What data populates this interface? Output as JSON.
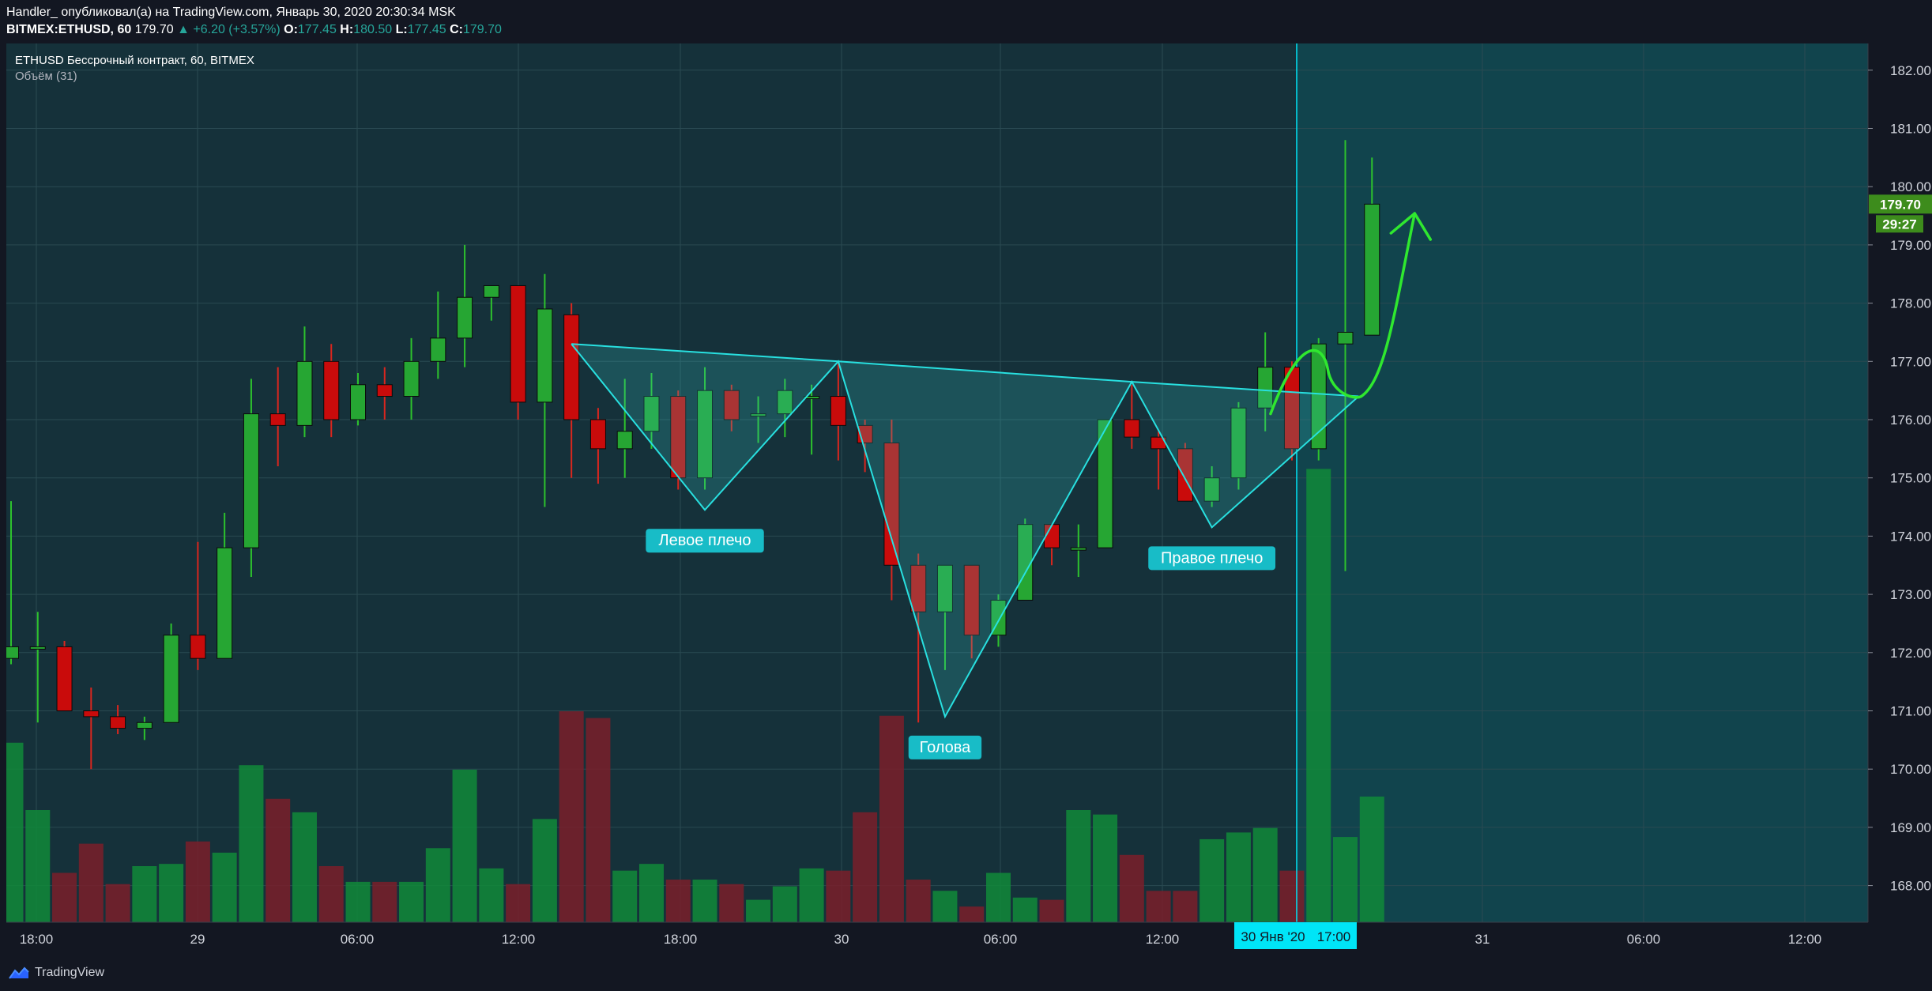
{
  "header": {
    "line1": "Handler_ опубликовал(а) на TradingView.com, Январь 30, 2020 20:30:34 MSK",
    "symbol_interval": "BITMEX:ETHUSD, 60",
    "last": "179.70",
    "change": "▲ +6.20 (+3.57%)",
    "o_label": "O:",
    "o": "177.45",
    "h_label": "H:",
    "h": "180.50",
    "l_label": "L:",
    "l": "177.45",
    "c_label": "C:",
    "c": "179.70"
  },
  "legend": {
    "title": "ETHUSD Бессрочный контракт, 60, BITMEX",
    "volume": "Объём (31)"
  },
  "footer": {
    "brand": "TradingView",
    "brand_icon": "tradingview-logo-icon"
  },
  "colors": {
    "up": "#26a633",
    "down": "#c90b0b",
    "pattern": "#28e0e0",
    "label_bg": "#18bcc7",
    "arrow": "#2fe82f",
    "price_tag": "#3d8c1c",
    "crosshair_label": "#00e5f7"
  },
  "chart_data": {
    "type": "candlestick",
    "interval_minutes": 60,
    "price_axis": {
      "ticks": [
        "168.00",
        "169.00",
        "170.00",
        "171.00",
        "172.00",
        "173.00",
        "174.00",
        "175.00",
        "176.00",
        "177.00",
        "178.00",
        "179.00",
        "180.00",
        "181.00",
        "182.00"
      ],
      "ylim": [
        167.4,
        182.4
      ],
      "last_price": "179.70",
      "countdown": "29:27"
    },
    "time_axis": {
      "ticks": [
        "18:00",
        "29",
        "06:00",
        "12:00",
        "18:00",
        "30",
        "06:00",
        "12:00",
        "31",
        "06:00",
        "12:00"
      ],
      "crosshair_date": "30 Янв '20",
      "crosshair_time": "17:00"
    },
    "candles": [
      {
        "o": 171.9,
        "h": 174.6,
        "l": 171.8,
        "c": 172.1
      },
      {
        "o": 172.1,
        "h": 172.7,
        "l": 170.8,
        "c": 172.1
      },
      {
        "o": 172.1,
        "h": 172.2,
        "l": 171.0,
        "c": 171.0
      },
      {
        "o": 171.0,
        "h": 171.4,
        "l": 170.0,
        "c": 170.9
      },
      {
        "o": 170.9,
        "h": 171.1,
        "l": 170.6,
        "c": 170.7
      },
      {
        "o": 170.7,
        "h": 170.9,
        "l": 170.5,
        "c": 170.8
      },
      {
        "o": 170.8,
        "h": 172.5,
        "l": 170.8,
        "c": 172.3
      },
      {
        "o": 172.3,
        "h": 173.9,
        "l": 171.7,
        "c": 171.9
      },
      {
        "o": 171.9,
        "h": 174.4,
        "l": 171.9,
        "c": 173.8
      },
      {
        "o": 173.8,
        "h": 176.7,
        "l": 173.3,
        "c": 176.1
      },
      {
        "o": 176.1,
        "h": 176.9,
        "l": 175.2,
        "c": 175.9
      },
      {
        "o": 175.9,
        "h": 177.6,
        "l": 175.7,
        "c": 177.0
      },
      {
        "o": 177.0,
        "h": 177.3,
        "l": 175.7,
        "c": 176.0
      },
      {
        "o": 176.0,
        "h": 176.8,
        "l": 175.9,
        "c": 176.6
      },
      {
        "o": 176.6,
        "h": 176.9,
        "l": 176.0,
        "c": 176.4
      },
      {
        "o": 176.4,
        "h": 177.4,
        "l": 176.0,
        "c": 177.0
      },
      {
        "o": 177.0,
        "h": 178.2,
        "l": 176.7,
        "c": 177.4
      },
      {
        "o": 177.4,
        "h": 179.0,
        "l": 176.9,
        "c": 178.1
      },
      {
        "o": 178.1,
        "h": 178.3,
        "l": 177.7,
        "c": 178.3
      },
      {
        "o": 178.3,
        "h": 178.3,
        "l": 176.0,
        "c": 176.3
      },
      {
        "o": 176.3,
        "h": 178.5,
        "l": 174.5,
        "c": 177.9
      },
      {
        "o": 177.8,
        "h": 178.0,
        "l": 175.0,
        "c": 176.0
      },
      {
        "o": 176.0,
        "h": 176.2,
        "l": 174.9,
        "c": 175.5
      },
      {
        "o": 175.5,
        "h": 176.7,
        "l": 175.0,
        "c": 175.8
      },
      {
        "o": 175.8,
        "h": 176.8,
        "l": 175.5,
        "c": 176.4
      },
      {
        "o": 176.4,
        "h": 176.5,
        "l": 174.8,
        "c": 175.0
      },
      {
        "o": 175.0,
        "h": 176.9,
        "l": 174.8,
        "c": 176.5
      },
      {
        "o": 176.5,
        "h": 176.6,
        "l": 175.8,
        "c": 176.0
      },
      {
        "o": 176.1,
        "h": 176.4,
        "l": 175.6,
        "c": 176.1
      },
      {
        "o": 176.1,
        "h": 176.7,
        "l": 175.7,
        "c": 176.5
      },
      {
        "o": 176.4,
        "h": 176.6,
        "l": 175.4,
        "c": 176.4
      },
      {
        "o": 176.4,
        "h": 177.0,
        "l": 175.3,
        "c": 175.9
      },
      {
        "o": 175.9,
        "h": 176.0,
        "l": 175.1,
        "c": 175.6
      },
      {
        "o": 175.6,
        "h": 176.0,
        "l": 172.9,
        "c": 173.5
      },
      {
        "o": 173.5,
        "h": 173.7,
        "l": 170.8,
        "c": 172.7
      },
      {
        "o": 172.7,
        "h": 173.5,
        "l": 171.7,
        "c": 173.5
      },
      {
        "o": 173.5,
        "h": 173.5,
        "l": 171.9,
        "c": 172.3
      },
      {
        "o": 172.3,
        "h": 173.0,
        "l": 172.1,
        "c": 172.9
      },
      {
        "o": 172.9,
        "h": 174.3,
        "l": 172.9,
        "c": 174.2
      },
      {
        "o": 174.2,
        "h": 174.2,
        "l": 173.5,
        "c": 173.8
      },
      {
        "o": 173.8,
        "h": 174.2,
        "l": 173.3,
        "c": 173.8
      },
      {
        "o": 173.8,
        "h": 176.0,
        "l": 173.8,
        "c": 176.0
      },
      {
        "o": 176.0,
        "h": 176.6,
        "l": 175.5,
        "c": 175.7
      },
      {
        "o": 175.7,
        "h": 175.8,
        "l": 174.8,
        "c": 175.5
      },
      {
        "o": 175.5,
        "h": 175.6,
        "l": 174.6,
        "c": 174.6
      },
      {
        "o": 174.6,
        "h": 175.2,
        "l": 174.5,
        "c": 175.0
      },
      {
        "o": 175.0,
        "h": 176.3,
        "l": 174.8,
        "c": 176.2
      },
      {
        "o": 176.2,
        "h": 177.5,
        "l": 175.8,
        "c": 176.9
      },
      {
        "o": 176.9,
        "h": 177.0,
        "l": 175.3,
        "c": 175.5
      },
      {
        "o": 175.5,
        "h": 177.4,
        "l": 175.3,
        "c": 177.3
      },
      {
        "o": 177.3,
        "h": 180.8,
        "l": 173.4,
        "c": 177.5
      },
      {
        "o": 177.45,
        "h": 180.5,
        "l": 177.45,
        "c": 179.7
      }
    ],
    "volume": [
      8,
      5,
      2.2,
      3.5,
      1.7,
      2.5,
      2.6,
      3.6,
      3.1,
      7,
      5.5,
      4.9,
      2.5,
      1.8,
      1.8,
      1.8,
      3.3,
      6.8,
      2.4,
      1.7,
      4.6,
      9.4,
      9.1,
      2.3,
      2.6,
      1.9,
      1.9,
      1.7,
      1.0,
      1.6,
      2.4,
      2.3,
      4.9,
      9.2,
      1.9,
      1.4,
      0.7,
      2.2,
      1.1,
      1.0,
      5.0,
      4.8,
      3.0,
      1.4,
      1.4,
      3.7,
      4.0,
      4.2,
      2.3,
      20.2,
      3.8,
      5.6
    ],
    "volume_ylim": [
      0,
      21
    ],
    "pattern": {
      "type": "inverse-head-and-shoulders",
      "labels": [
        "Левое плечо",
        "Голова",
        "Правое плечо"
      ],
      "points": [
        {
          "bar": 21,
          "price": 177.3
        },
        {
          "bar": 26,
          "price": 174.45
        },
        {
          "bar": 31,
          "price": 177.0
        },
        {
          "bar": 35,
          "price": 170.9
        },
        {
          "bar": 42,
          "price": 176.65
        },
        {
          "bar": 45,
          "price": 174.15
        },
        {
          "bar": 50.5,
          "price": 176.4
        }
      ]
    },
    "projection_arrow": [
      {
        "bar": 47.2,
        "price": 176.1
      },
      {
        "bar": 48.9,
        "price": 177.0
      },
      {
        "bar": 50.6,
        "price": 176.4
      },
      {
        "bar": 52.6,
        "price": 179.5
      }
    ]
  }
}
